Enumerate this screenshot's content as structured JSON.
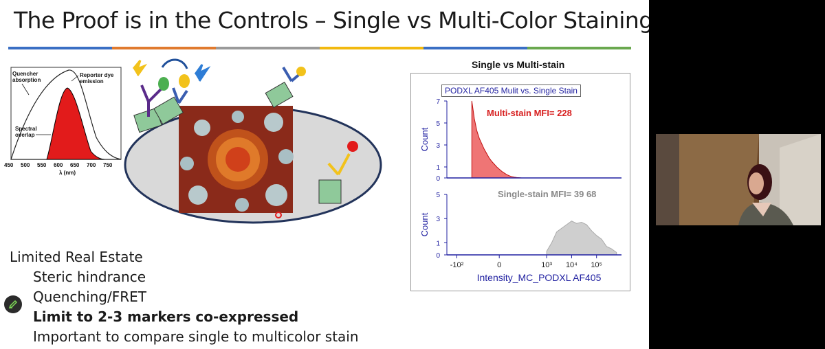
{
  "slide": {
    "title": "The Proof is in the Controls – Single vs Multi-Color Staining",
    "rule_colors": [
      "#3a6fc4",
      "#e07a2e",
      "#9a9a9a",
      "#f2b90f",
      "#3a6fc4",
      "#6aa84f"
    ]
  },
  "fret_plot": {
    "quencher_label": [
      "Quencher",
      "absorption"
    ],
    "reporter_label": [
      "Reporter dye",
      "emission"
    ],
    "overlap_label": [
      "Spectral",
      "overlap"
    ],
    "x_ticks": [
      "450",
      "500",
      "550",
      "600",
      "650",
      "700",
      "750"
    ],
    "x_label": "λ (nm)"
  },
  "bullets": {
    "main": "Limited Real Estate",
    "items": [
      {
        "text": "Steric hindrance",
        "bold": false
      },
      {
        "text": "Quenching/FRET",
        "bold": false
      },
      {
        "text": "Limit to 2-3 markers co-expressed",
        "bold": true
      },
      {
        "text": "Important to compare single to multicolor stain",
        "bold": false
      }
    ]
  },
  "chart": {
    "heading": "Single vs Multi-stain",
    "box_title": "PODXL AF405 Mulit vs. Single Stain"
  },
  "chart_data": {
    "type": "area",
    "xlabel": "Intensity_MC_PODXL AF405",
    "x_ticks": [
      "-10²",
      "0",
      "10³",
      "10⁴",
      "10⁵"
    ],
    "colors": {
      "multi": "#e83a3a",
      "single": "#cfcfcf",
      "axis": "#1f1fa0"
    },
    "panels": [
      {
        "name": "Multi-stain",
        "annotation": "Multi-stain MFI= 228",
        "ylabel": "Count",
        "y_ticks": [
          "0",
          "1",
          "3",
          "5",
          "7"
        ],
        "ylim": [
          0,
          7
        ],
        "x": [
          0.0,
          0.1,
          0.2,
          0.3,
          0.4,
          0.5,
          0.6,
          0.7,
          0.8,
          0.9,
          1.0,
          1.1,
          1.2,
          1.3,
          1.4,
          1.5,
          1.6,
          1.7,
          1.8,
          1.9,
          2.0
        ],
        "values": [
          7.0,
          5.4,
          4.3,
          3.6,
          3.1,
          2.6,
          2.2,
          1.8,
          1.5,
          1.25,
          1.0,
          0.8,
          0.6,
          0.45,
          0.3,
          0.2,
          0.12,
          0.07,
          0.04,
          0.02,
          0.0
        ]
      },
      {
        "name": "Single-stain",
        "annotation": "Single-stain MFI= 39 68",
        "ylabel": "Count",
        "y_ticks": [
          "0",
          "1",
          "3",
          "5"
        ],
        "ylim": [
          0,
          5
        ],
        "x": [
          3.0,
          3.2,
          3.4,
          3.6,
          3.8,
          4.0,
          4.2,
          4.4,
          4.6,
          4.8,
          5.0,
          5.2,
          5.4,
          5.6,
          5.8
        ],
        "values": [
          0.3,
          1.0,
          1.9,
          2.2,
          2.5,
          2.8,
          2.6,
          2.7,
          2.5,
          2.0,
          1.6,
          1.3,
          0.7,
          0.5,
          0.2
        ]
      }
    ]
  }
}
